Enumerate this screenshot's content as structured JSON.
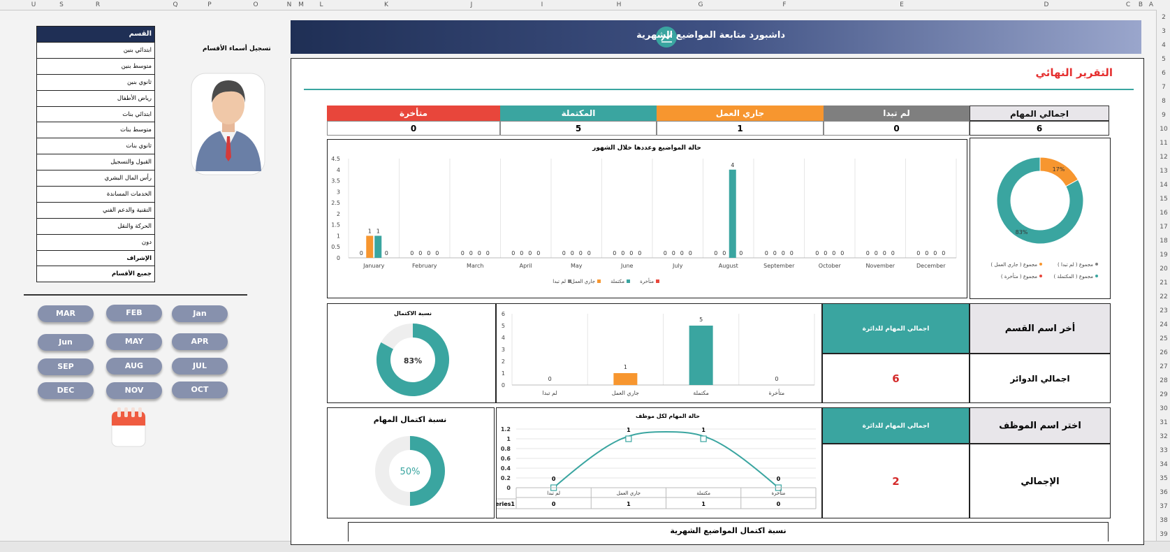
{
  "columns": [
    "U",
    "S",
    "R",
    "Q",
    "P",
    "O",
    "N",
    "M",
    "L",
    "K",
    "J",
    "I",
    "H",
    "G",
    "F",
    "E",
    "D",
    "C",
    "B",
    "A"
  ],
  "rows": [
    "2",
    "3",
    "4",
    "5",
    "6",
    "7",
    "8",
    "9",
    "10",
    "11",
    "12",
    "13",
    "14",
    "15",
    "16",
    "17",
    "18",
    "19",
    "20",
    "21",
    "22",
    "23",
    "24",
    "25",
    "26",
    "27",
    "28",
    "29",
    "30",
    "31",
    "32",
    "33",
    "34",
    "35",
    "36",
    "37",
    "38",
    "39"
  ],
  "left": {
    "dept_register_label": "تسجيل أسماء الأقسام",
    "dept_header": "القسم",
    "departments": [
      {
        "name": "ابتدائي بنين",
        "bold": false
      },
      {
        "name": "متوسط بنين",
        "bold": false
      },
      {
        "name": "ثانوي بنين",
        "bold": false
      },
      {
        "name": "رياض الأطفال",
        "bold": false
      },
      {
        "name": "ابتدائي بنات",
        "bold": false
      },
      {
        "name": "متوسط بنات",
        "bold": false
      },
      {
        "name": "ثانوي بنات",
        "bold": false
      },
      {
        "name": "القبول والتسجيل",
        "bold": false
      },
      {
        "name": "رأس المال البشري",
        "bold": false
      },
      {
        "name": "الخدمات المساندة",
        "bold": false
      },
      {
        "name": "التقنية والدعم الفني",
        "bold": false
      },
      {
        "name": "الحركة والنقل",
        "bold": false
      },
      {
        "name": "دون",
        "bold": false
      },
      {
        "name": "الإشراف",
        "bold": true
      },
      {
        "name": "جميع الأقسام",
        "bold": true
      }
    ],
    "months": [
      "Jan",
      "FEB",
      "MAR",
      "APR",
      "MAY",
      "Jun",
      "JUL",
      "AUG",
      "SEP",
      "OCT",
      "NOV",
      "DEC"
    ]
  },
  "header": {
    "title": "داشبورد متابعة المواضيع الشهرية"
  },
  "final_report": "التقرير النهائي",
  "status": {
    "total_label": "اجمالي المهام",
    "total_value": "6",
    "not_started_label": "لم تبدا",
    "not_started_value": "0",
    "in_progress_label": "جاري العمل",
    "in_progress_value": "1",
    "completed_label": "المكتملة",
    "completed_value": "5",
    "late_label": "متأخرة",
    "late_value": "0"
  },
  "colors": {
    "not_started": "#7f7f7f",
    "in_progress": "#f7962f",
    "completed": "#3aa5a0",
    "late": "#e8463b"
  },
  "side": {
    "dept_select_label": "أخر اسم القسم",
    "dept_tasks_label": "اجمالي المهام للدائرة",
    "dept_total_label": "اجمالي الدوائر",
    "dept_total_value": "6",
    "emp_select_label": "اختر اسم الموظف",
    "emp_tasks_label": "اجمالي المهام للدائرة",
    "emp_total_label": "الإجمالي",
    "emp_total_value": "2"
  },
  "chart_data": [
    {
      "id": "monthly",
      "type": "bar",
      "title": "حالة المواضيع وعددها خلال الشهور",
      "categories": [
        "January",
        "February",
        "March",
        "April",
        "May",
        "June",
        "July",
        "August",
        "September",
        "October",
        "November",
        "December"
      ],
      "series": [
        {
          "name": "متأخرة",
          "values": [
            0,
            0,
            0,
            0,
            0,
            0,
            0,
            0,
            0,
            0,
            0,
            0
          ]
        },
        {
          "name": "جاري العمل",
          "values": [
            1,
            0,
            0,
            0,
            0,
            0,
            0,
            0,
            0,
            0,
            0,
            0
          ]
        },
        {
          "name": "مكتملة",
          "values": [
            1,
            0,
            0,
            0,
            0,
            0,
            0,
            4,
            0,
            0,
            0,
            0
          ]
        },
        {
          "name": "لم تبدا",
          "values": [
            0,
            0,
            0,
            0,
            0,
            0,
            0,
            0,
            0,
            0,
            0,
            0
          ]
        }
      ],
      "y_ticks": [
        "0",
        "0.5",
        "1",
        "1.5",
        "2",
        "2.5",
        "3",
        "3.5",
        "4",
        "4.5"
      ],
      "ylim": [
        0,
        4.5
      ],
      "legend": [
        "متأخرة",
        "مكتملة",
        "جاري العمل",
        "لم تبدا"
      ],
      "legend_position": "bottom"
    },
    {
      "id": "donut-total",
      "type": "pie",
      "slices": [
        {
          "name": "مجموع ( لم تبدا )",
          "value": 0,
          "label": "0%"
        },
        {
          "name": "مجموع ( جاري العمل )",
          "value": 17,
          "label": "17%"
        },
        {
          "name": "مجموع ( المكتملة )",
          "value": 83,
          "label": "83%"
        },
        {
          "name": "مجموع ( متأخرة )",
          "value": 0,
          "label": "0%"
        }
      ],
      "legend": [
        "مجموع ( لم تبدا )",
        "مجموع ( جاري العمل )",
        "مجموع ( المكتملة )",
        "مجموع ( متأخرة )"
      ],
      "legend_position": "bottom"
    },
    {
      "id": "completion-dept",
      "type": "pie",
      "title": "نسبة الاكتمال",
      "value": 83,
      "label": "83%"
    },
    {
      "id": "status-dept",
      "type": "bar",
      "categories": [
        "لم تبدا",
        "جاري العمل",
        "مكتملة",
        "متأخرة"
      ],
      "values": [
        0,
        1,
        5,
        0
      ],
      "y_ticks": [
        "0",
        "1",
        "2",
        "3",
        "4",
        "5",
        "6"
      ],
      "ylim": [
        0,
        6
      ]
    },
    {
      "id": "completion-emp",
      "type": "pie",
      "title": "نسبة اكتمال المهام",
      "value": 50,
      "label": "50%"
    },
    {
      "id": "status-emp",
      "type": "line",
      "title": "حالة المهام لكل موظف",
      "categories": [
        "لم تبدا",
        "جاري العمل",
        "مكتملة",
        "متأخرة"
      ],
      "series": [
        {
          "name": "Series1",
          "values": [
            0,
            1,
            1,
            0
          ]
        }
      ],
      "y_ticks": [
        "0",
        "0.2",
        "0.4",
        "0.6",
        "0.8",
        "1",
        "1.2"
      ],
      "ylim": [
        0,
        1.2
      ]
    }
  ],
  "monthly_completion_title": "نسبة اكتمال المواضيع الشهرية"
}
